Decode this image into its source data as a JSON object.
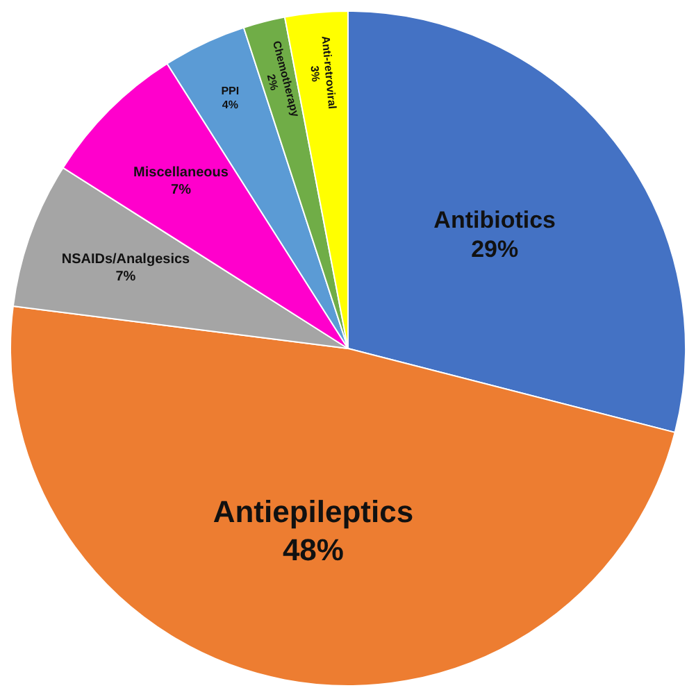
{
  "chart_data": {
    "type": "pie",
    "categories": [
      "Antibiotics",
      "Antiepileptics",
      "NSAIDs/Analgesics",
      "Miscellaneous",
      "PPI",
      "Chemotherapy",
      "Anti-retroviral"
    ],
    "values": [
      29,
      48,
      7,
      7,
      4,
      2,
      3
    ],
    "value_labels": [
      "29%",
      "48%",
      "7%",
      "7%",
      "4%",
      "2%",
      "3%"
    ],
    "colors": [
      "#4472c4",
      "#ed7d31",
      "#a5a5a5",
      "#ff00cc",
      "#5b9bd5",
      "#70ad47",
      "#ffff00"
    ],
    "legend": false
  }
}
